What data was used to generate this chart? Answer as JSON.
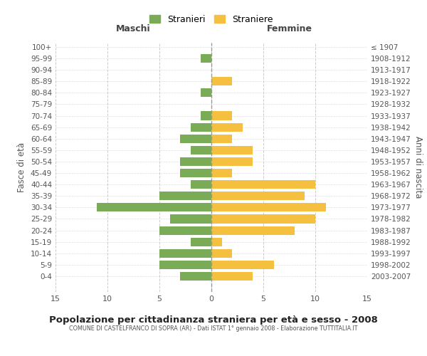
{
  "age_groups": [
    "0-4",
    "5-9",
    "10-14",
    "15-19",
    "20-24",
    "25-29",
    "30-34",
    "35-39",
    "40-44",
    "45-49",
    "50-54",
    "55-59",
    "60-64",
    "65-69",
    "70-74",
    "75-79",
    "80-84",
    "85-89",
    "90-94",
    "95-99",
    "100+"
  ],
  "birth_years": [
    "2003-2007",
    "1998-2002",
    "1993-1997",
    "1988-1992",
    "1983-1987",
    "1978-1982",
    "1973-1977",
    "1968-1972",
    "1963-1967",
    "1958-1962",
    "1953-1957",
    "1948-1952",
    "1943-1947",
    "1938-1942",
    "1933-1937",
    "1928-1932",
    "1923-1927",
    "1918-1922",
    "1913-1917",
    "1908-1912",
    "≤ 1907"
  ],
  "males": [
    3,
    5,
    5,
    2,
    5,
    4,
    11,
    5,
    2,
    3,
    3,
    2,
    3,
    2,
    1,
    0,
    1,
    0,
    0,
    1,
    0
  ],
  "females": [
    4,
    6,
    2,
    1,
    8,
    10,
    11,
    9,
    10,
    2,
    4,
    4,
    2,
    3,
    2,
    0,
    0,
    2,
    0,
    0,
    0
  ],
  "male_color": "#7aab57",
  "female_color": "#f5c040",
  "background_color": "#ffffff",
  "grid_color": "#cccccc",
  "title": "Popolazione per cittadinanza straniera per età e sesso - 2008",
  "subtitle": "COMUNE DI CASTELFRANCO DI SOPRA (AR) - Dati ISTAT 1° gennaio 2008 - Elaborazione TUTTITALIA.IT",
  "ylabel_left": "Fasce di età",
  "ylabel_right": "Anni di nascita",
  "xlabel_left": "Maschi",
  "xlabel_right": "Femmine",
  "legend_male": "Stranieri",
  "legend_female": "Straniere",
  "xlim": 15
}
